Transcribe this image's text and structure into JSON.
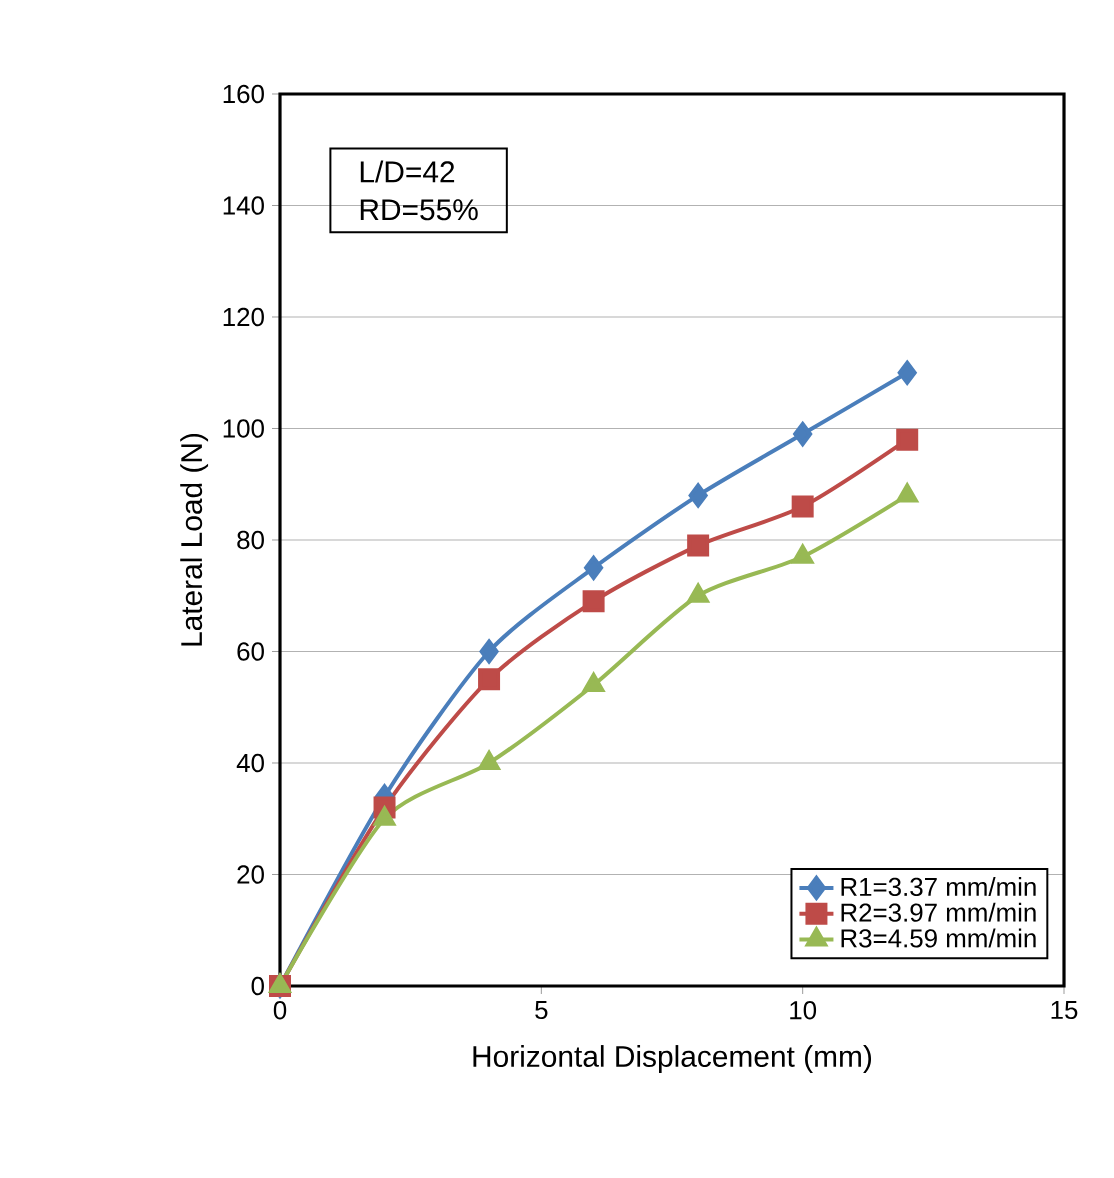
{
  "chart_data": {
    "type": "line",
    "xlabel": "Horizontal Displacement (mm)",
    "ylabel": "Lateral Load (N)",
    "annotations": [
      "L/D=42",
      "RD=55%"
    ],
    "x": [
      0,
      2,
      4,
      6,
      8,
      10,
      12
    ],
    "series": [
      {
        "name": "R1=3.37 mm/min",
        "color": "#4a7ebb",
        "marker": "diamond",
        "values": [
          0,
          34,
          60,
          75,
          88,
          99,
          110
        ]
      },
      {
        "name": "R2=3.97 mm/min",
        "color": "#be4b48",
        "marker": "square",
        "values": [
          0,
          32,
          55,
          69,
          79,
          86,
          98
        ]
      },
      {
        "name": "R3=4.59 mm/min",
        "color": "#98b954",
        "marker": "triangle",
        "values": [
          0,
          30,
          40,
          54,
          70,
          77,
          88
        ]
      }
    ],
    "xlim": [
      0,
      15
    ],
    "ylim": [
      0,
      160
    ],
    "xticks": [
      0,
      5,
      10,
      15
    ],
    "yticks": [
      0,
      20,
      40,
      60,
      80,
      100,
      120,
      140,
      160
    ],
    "grid": "y",
    "legend": "bottom right"
  }
}
